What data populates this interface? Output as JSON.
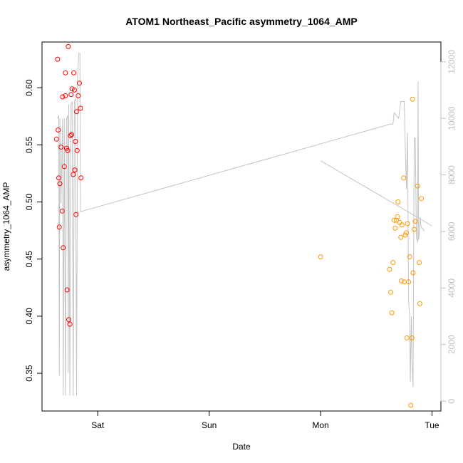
{
  "chart_data": {
    "type": "scatter",
    "title": "ATOM1 Northeast_Pacific asymmetry_1064_AMP",
    "xlabel": "Date",
    "ylabel": "asymmetry_1064_AMP",
    "x_unit": "days after Sat 00:00",
    "x_ticks": [
      {
        "label": "Sat",
        "value": 0
      },
      {
        "label": "Sun",
        "value": 1
      },
      {
        "label": "Mon",
        "value": 2
      },
      {
        "label": "Tue",
        "value": 3
      }
    ],
    "xlim": [
      -0.5,
      3.08
    ],
    "ylim": [
      0.317,
      0.64
    ],
    "y_ticks": [
      0.35,
      0.4,
      0.45,
      0.5,
      0.55,
      0.6
    ],
    "y_tick_labels": [
      "0.35",
      "0.40",
      "0.45",
      "0.50",
      "0.55",
      "0.60"
    ],
    "y2_ticks": [
      0,
      2000,
      4000,
      6000,
      8000,
      10000,
      12000
    ],
    "y2_tick_labels": [
      "0",
      "2000",
      "4000",
      "6000",
      "8000",
      "10000",
      "12000"
    ],
    "y2lim": [
      -350,
      12700
    ],
    "grid": false,
    "colors": {
      "series_1": "#ff0000",
      "series_2": "#ff9900",
      "altitude": "#c4c4c4",
      "y2_axis": "#bfbfbf",
      "axis": "#000000"
    },
    "series": [
      {
        "color_key": "series_1",
        "points": [
          [
            -0.36,
            0.625
          ],
          [
            -0.37,
            0.555
          ],
          [
            -0.355,
            0.563
          ],
          [
            -0.35,
            0.521
          ],
          [
            -0.345,
            0.478
          ],
          [
            -0.34,
            0.516
          ],
          [
            -0.33,
            0.548
          ],
          [
            -0.32,
            0.492
          ],
          [
            -0.315,
            0.592
          ],
          [
            -0.31,
            0.46
          ],
          [
            -0.3,
            0.531
          ],
          [
            -0.29,
            0.613
          ],
          [
            -0.29,
            0.593
          ],
          [
            -0.28,
            0.547
          ],
          [
            -0.275,
            0.423
          ],
          [
            -0.27,
            0.545
          ],
          [
            -0.265,
            0.636
          ],
          [
            -0.26,
            0.397
          ],
          [
            -0.25,
            0.393
          ],
          [
            -0.245,
            0.558
          ],
          [
            -0.24,
            0.594
          ],
          [
            -0.235,
            0.559
          ],
          [
            -0.23,
            0.599
          ],
          [
            -0.22,
            0.524
          ],
          [
            -0.215,
            0.613
          ],
          [
            -0.21,
            0.598
          ],
          [
            -0.205,
            0.528
          ],
          [
            -0.2,
            0.553
          ],
          [
            -0.195,
            0.489
          ],
          [
            -0.19,
            0.579
          ],
          [
            -0.185,
            0.545
          ],
          [
            -0.175,
            0.593
          ],
          [
            -0.165,
            0.604
          ],
          [
            -0.155,
            0.582
          ],
          [
            -0.15,
            0.521
          ]
        ]
      },
      {
        "color_key": "series_2",
        "points": [
          [
            2.0,
            0.452
          ],
          [
            2.62,
            0.441
          ],
          [
            2.63,
            0.421
          ],
          [
            2.64,
            0.403
          ],
          [
            2.65,
            0.447
          ],
          [
            2.66,
            0.484
          ],
          [
            2.67,
            0.477
          ],
          [
            2.68,
            0.484
          ],
          [
            2.69,
            0.487
          ],
          [
            2.695,
            0.5
          ],
          [
            2.71,
            0.482
          ],
          [
            2.72,
            0.469
          ],
          [
            2.73,
            0.48
          ],
          [
            2.745,
            0.521
          ],
          [
            2.75,
            0.43
          ],
          [
            2.76,
            0.471
          ],
          [
            2.77,
            0.473
          ],
          [
            2.775,
            0.381
          ],
          [
            2.78,
            0.481
          ],
          [
            2.79,
            0.43
          ],
          [
            2.8,
            0.452
          ],
          [
            2.82,
            0.381
          ],
          [
            2.825,
            0.59
          ],
          [
            2.83,
            0.438
          ],
          [
            2.84,
            0.476
          ],
          [
            2.85,
            0.483
          ],
          [
            2.87,
            0.514
          ],
          [
            2.885,
            0.447
          ],
          [
            2.89,
            0.411
          ],
          [
            2.905,
            0.503
          ],
          [
            2.725,
            0.431
          ],
          [
            2.81,
            0.322
          ]
        ]
      }
    ],
    "altitude_line": [
      [
        -0.36,
        10000
      ],
      [
        -0.35,
        10100
      ],
      [
        -0.345,
        900
      ],
      [
        -0.34,
        10000
      ],
      [
        -0.33,
        7000
      ],
      [
        -0.315,
        10000
      ],
      [
        -0.31,
        200
      ],
      [
        -0.3,
        10000
      ],
      [
        -0.29,
        200
      ],
      [
        -0.28,
        10000
      ],
      [
        -0.27,
        10100
      ],
      [
        -0.265,
        1000
      ],
      [
        -0.26,
        10500
      ],
      [
        -0.25,
        200
      ],
      [
        -0.24,
        10500
      ],
      [
        -0.23,
        10600
      ],
      [
        -0.22,
        200
      ],
      [
        -0.21,
        10600
      ],
      [
        -0.2,
        10700
      ],
      [
        -0.19,
        200
      ],
      [
        -0.18,
        11600
      ],
      [
        -0.17,
        12300
      ],
      [
        -0.16,
        12300
      ],
      [
        -0.155,
        6700
      ],
      [
        2.63,
        9800
      ],
      [
        2.65,
        9800
      ],
      [
        2.66,
        10200
      ],
      [
        2.68,
        10100
      ],
      [
        2.7,
        10000
      ],
      [
        2.72,
        10600
      ],
      [
        2.75,
        10600
      ],
      [
        2.76,
        9000
      ],
      [
        2.77,
        7500
      ],
      [
        2.78,
        9500
      ],
      [
        2.79,
        3500
      ],
      [
        2.8,
        3000
      ],
      [
        2.805,
        700
      ],
      [
        2.815,
        3000
      ],
      [
        2.82,
        1500
      ],
      [
        2.83,
        500
      ],
      [
        2.84,
        9300
      ],
      [
        2.85,
        9300
      ],
      [
        2.86,
        5800
      ],
      [
        2.87,
        5600
      ],
      [
        2.875,
        11300
      ],
      [
        2.88,
        5700
      ],
      [
        2.885,
        5900
      ],
      [
        2.895,
        6500
      ],
      [
        2.9,
        6200
      ],
      [
        2.91,
        6100
      ],
      [
        2.92,
        6100
      ],
      [
        2.93,
        6000
      ]
    ],
    "altitude_line_2": [
      [
        2.0,
        8500
      ],
      [
        3.0,
        6200
      ]
    ]
  }
}
